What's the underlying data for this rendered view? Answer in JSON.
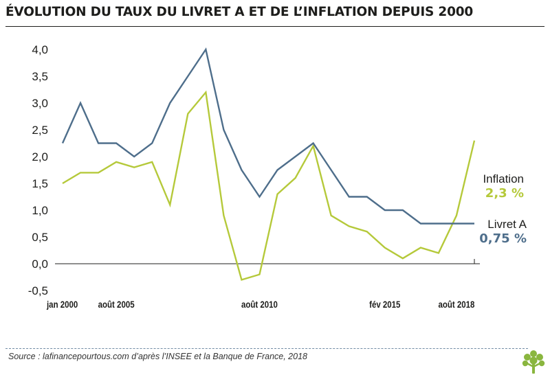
{
  "title": "ÉVOLUTION DU TAUX DU LIVRET A ET DE L’INFLATION DEPUIS 2000",
  "source": "Source : lafinancepourtous.com d’après l’INSEE et la Banque de France, 2018",
  "colors": {
    "livret_a": "#4e6e8b",
    "inflation": "#b5c93a",
    "axis": "#1d1d1b",
    "footer_rule": "#6f8aa3",
    "logo": "#8ab63f"
  },
  "logo_icon": "tree-icon",
  "chart_data": {
    "type": "line",
    "title": "ÉVOLUTION DU TAUX DU LIVRET A ET DE L’INFLATION DEPUIS 2000",
    "xlabel": "",
    "ylabel": "",
    "ylim": [
      -0.5,
      4.0
    ],
    "yticks": [
      -0.5,
      0.0,
      0.5,
      1.0,
      1.5,
      2.0,
      2.5,
      3.0,
      3.5,
      4.0
    ],
    "ytick_labels": [
      "-0,5",
      "0,0",
      "0,5",
      "1,0",
      "1,5",
      "2,0",
      "2,5",
      "3,0",
      "3,5",
      "4,0"
    ],
    "x_tick_labels": [
      {
        "label": "jan 2000",
        "index": 0
      },
      {
        "label": "août 2005",
        "index": 3
      },
      {
        "label": "août 2010",
        "index": 11
      },
      {
        "label": "fév 2015",
        "index": 18
      },
      {
        "label": "août 2018",
        "index": 22
      }
    ],
    "grid": false,
    "series": [
      {
        "name": "Livret A",
        "end_label": "0,75 %",
        "color": "#4e6e8b",
        "values": [
          2.25,
          3.0,
          2.25,
          2.25,
          2.0,
          2.25,
          3.0,
          3.5,
          4.0,
          2.5,
          1.75,
          1.25,
          1.75,
          2.0,
          2.25,
          1.75,
          1.25,
          1.25,
          1.0,
          1.0,
          0.75,
          0.75,
          0.75,
          0.75
        ]
      },
      {
        "name": "Inflation",
        "end_label": "2,3 %",
        "color": "#b5c93a",
        "values": [
          1.5,
          1.7,
          1.7,
          1.9,
          1.8,
          1.9,
          1.1,
          2.8,
          3.2,
          0.9,
          -0.3,
          -0.2,
          1.3,
          1.6,
          2.2,
          0.9,
          0.7,
          0.6,
          0.3,
          0.1,
          0.3,
          0.2,
          0.9,
          2.3
        ]
      }
    ]
  }
}
